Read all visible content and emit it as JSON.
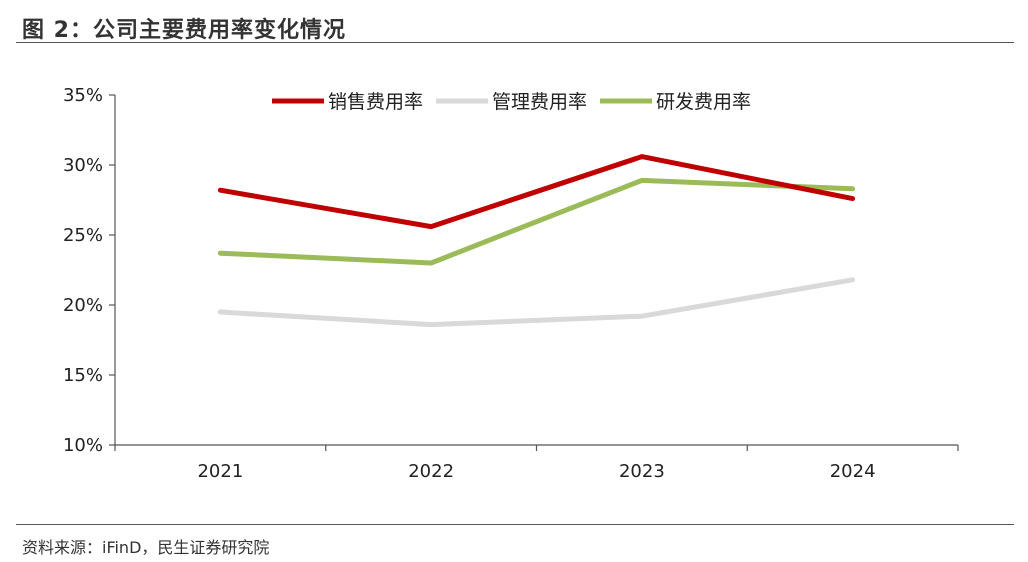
{
  "header": {
    "title": "图 2：公司主要费用率变化情况"
  },
  "footer": {
    "source": "资料来源：iFinD，民生证券研究院"
  },
  "chart_data": {
    "type": "line",
    "x": [
      "2021",
      "2022",
      "2023",
      "2024"
    ],
    "ylim": [
      10,
      35
    ],
    "yticks": [
      "10%",
      "15%",
      "20%",
      "25%",
      "30%",
      "35%"
    ],
    "ytick_values": [
      10,
      15,
      20,
      25,
      30,
      35
    ],
    "grid": false,
    "legend_position": "top",
    "series": [
      {
        "name": "销售费用率",
        "color": "#C00000",
        "values": [
          28.2,
          25.6,
          30.6,
          27.6
        ]
      },
      {
        "name": "管理费用率",
        "color": "#D9D9D9",
        "values": [
          19.5,
          18.6,
          19.2,
          21.8
        ]
      },
      {
        "name": "研发费用率",
        "color": "#9BBB59",
        "values": [
          23.7,
          23.0,
          28.9,
          28.3
        ]
      }
    ]
  }
}
